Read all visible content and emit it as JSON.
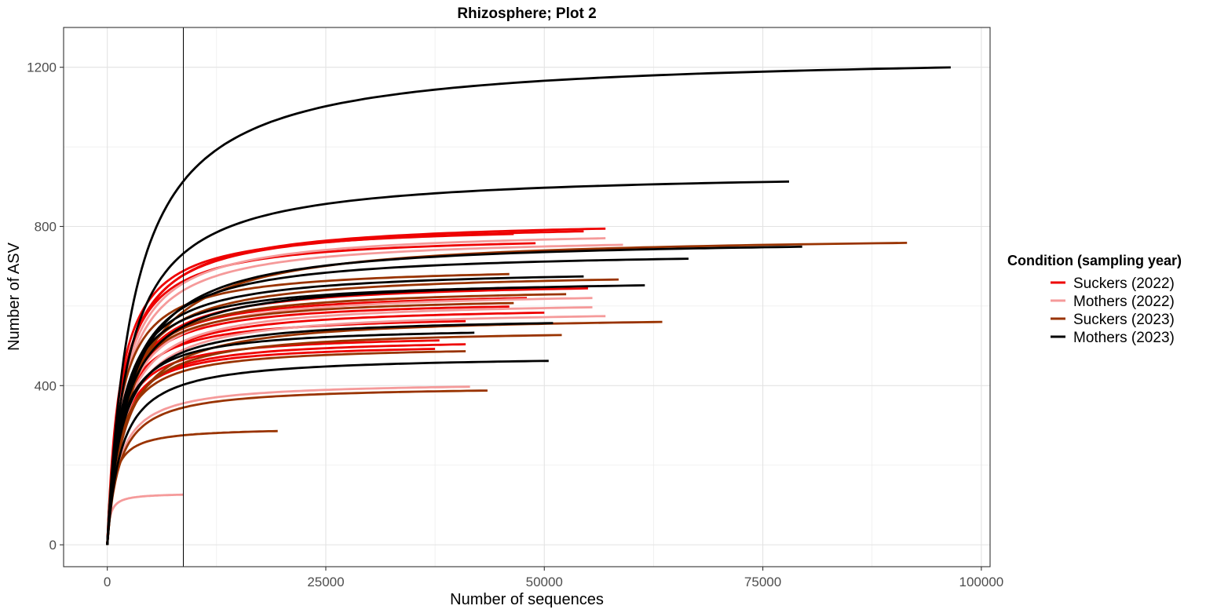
{
  "chart_data": {
    "type": "line",
    "title": "Rhizosphere; Plot 2",
    "xlabel": "Number of sequences",
    "ylabel": "Number of ASV",
    "xlim": [
      -5000,
      101000
    ],
    "ylim": [
      -55,
      1300
    ],
    "x_ticks": [
      0,
      25000,
      50000,
      75000,
      100000
    ],
    "x_tick_labels": [
      "0",
      "25000",
      "50000",
      "75000",
      "100000"
    ],
    "y_ticks": [
      0,
      400,
      800,
      1200
    ],
    "y_tick_labels": [
      "0",
      "400",
      "800",
      "1200"
    ],
    "grid": true,
    "reference_vline_x": 8700,
    "legend": {
      "title": "Condition (sampling year)",
      "position": "right",
      "entries": [
        {
          "label": "Suckers (2022)",
          "color": "#ee0000"
        },
        {
          "label": "Mothers (2022)",
          "color": "#f59a9a"
        },
        {
          "label": "Suckers (2023)",
          "color": "#993300"
        },
        {
          "label": "Mothers (2023)",
          "color": "#000000"
        }
      ]
    },
    "curve_model": "asymptotic rarefaction: each curve rises from 0 and approaches its plateau value, ending at its maximum sequence depth",
    "series": [
      {
        "group": "Suckers (2022)",
        "color": "#ee0000",
        "curves": [
          {
            "depth": 57000,
            "plateau": 820
          },
          {
            "depth": 54500,
            "plateau": 813
          },
          {
            "depth": 46500,
            "plateau": 806
          },
          {
            "depth": 49000,
            "plateau": 782
          },
          {
            "depth": 55000,
            "plateau": 665
          },
          {
            "depth": 48000,
            "plateau": 640
          },
          {
            "depth": 46000,
            "plateau": 618
          },
          {
            "depth": 50000,
            "plateau": 602
          },
          {
            "depth": 41000,
            "plateau": 580
          },
          {
            "depth": 38000,
            "plateau": 530
          },
          {
            "depth": 41000,
            "plateau": 520
          },
          {
            "depth": 37500,
            "plateau": 508
          }
        ]
      },
      {
        "group": "Mothers (2022)",
        "color": "#f59a9a",
        "curves": [
          {
            "depth": 57000,
            "plateau": 795
          },
          {
            "depth": 59000,
            "plateau": 778
          },
          {
            "depth": 55500,
            "plateau": 640
          },
          {
            "depth": 55500,
            "plateau": 616
          },
          {
            "depth": 57000,
            "plateau": 593
          },
          {
            "depth": 41500,
            "plateau": 410
          },
          {
            "depth": 8700,
            "plateau": 130
          }
        ]
      },
      {
        "group": "Suckers (2023)",
        "color": "#993300",
        "curves": [
          {
            "depth": 91500,
            "plateau": 783
          },
          {
            "depth": 46000,
            "plateau": 702
          },
          {
            "depth": 58500,
            "plateau": 688
          },
          {
            "depth": 52500,
            "plateau": 650
          },
          {
            "depth": 46500,
            "plateau": 627
          },
          {
            "depth": 63500,
            "plateau": 578
          },
          {
            "depth": 52000,
            "plateau": 544
          },
          {
            "depth": 41000,
            "plateau": 502
          },
          {
            "depth": 43500,
            "plateau": 400
          },
          {
            "depth": 19500,
            "plateau": 295
          }
        ]
      },
      {
        "group": "Mothers (2023)",
        "color": "#000000",
        "curves": [
          {
            "depth": 96500,
            "plateau": 1238
          },
          {
            "depth": 78000,
            "plateau": 942
          },
          {
            "depth": 79500,
            "plateau": 773
          },
          {
            "depth": 66500,
            "plateau": 742
          },
          {
            "depth": 54500,
            "plateau": 696
          },
          {
            "depth": 61500,
            "plateau": 673
          },
          {
            "depth": 49500,
            "plateau": 668
          },
          {
            "depth": 51000,
            "plateau": 575
          },
          {
            "depth": 42000,
            "plateau": 550
          },
          {
            "depth": 50500,
            "plateau": 477
          }
        ]
      }
    ]
  }
}
